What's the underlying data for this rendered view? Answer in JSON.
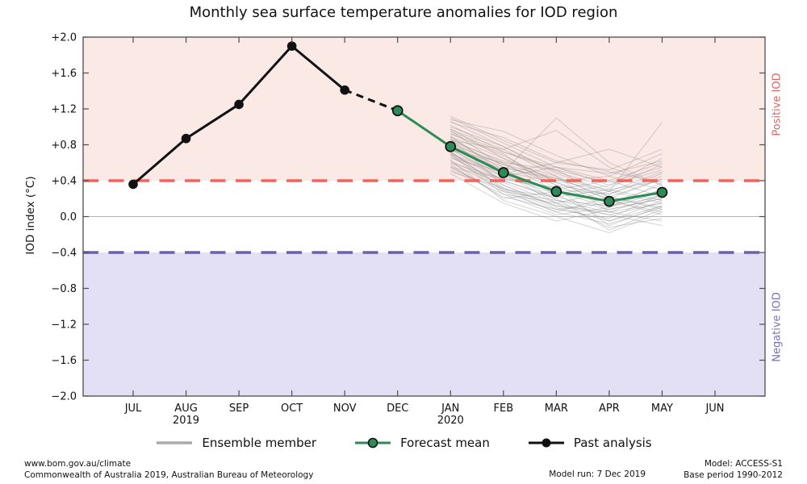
{
  "title": "Monthly sea surface temperature anomalies for IOD region",
  "ylabel": "IOD index (°C)",
  "region_labels": {
    "positive": "Positive IOD",
    "negative": "Negative IOD"
  },
  "legend": [
    {
      "key": "ensemble",
      "label": "Ensemble member"
    },
    {
      "key": "forecast",
      "label": "Forecast mean"
    },
    {
      "key": "past",
      "label": "Past analysis"
    }
  ],
  "footer": {
    "left_line1": "www.bom.gov.au/climate",
    "left_line2": "Commonwealth of Australia 2019, Australian Bureau of Meteorology",
    "model_run": "Model run: 7 Dec 2019",
    "model": "Model: ACCESS-S1",
    "base_period": "Base period 1990-2012"
  },
  "colors": {
    "positive_band": "#fbe9e6",
    "negative_band": "#e3e0f5",
    "positive_threshold": "#f4625c",
    "negative_threshold": "#6a61ad",
    "positive_label": "#e0625c",
    "negative_label": "#7a71b8",
    "forecast_green": "#2e8b57",
    "past_black": "#111111",
    "ensemble_gray": "#8c8c8c",
    "zero_line": "#b3b3b3",
    "frame": "#4d4d4d",
    "tick_text": "#111111"
  },
  "chart_data": {
    "type": "line",
    "title": "Monthly sea surface temperature anomalies for IOD region",
    "xlabel": "",
    "ylabel": "IOD index (°C)",
    "ylim": [
      -2.0,
      2.0
    ],
    "grid": "zero-line only",
    "legend_position": "bottom-center",
    "months": [
      "JUL",
      "AUG",
      "SEP",
      "OCT",
      "NOV",
      "DEC",
      "JAN",
      "FEB",
      "MAR",
      "APR",
      "MAY",
      "JUN"
    ],
    "year_labels": [
      {
        "text": "2019",
        "month": "AUG"
      },
      {
        "text": "2020",
        "month": "JAN"
      }
    ],
    "y_ticks": [
      {
        "label": "+2.0",
        "value": 2.0
      },
      {
        "label": "+1.6",
        "value": 1.6
      },
      {
        "label": "+1.2",
        "value": 1.2
      },
      {
        "label": "+0.8",
        "value": 0.8
      },
      {
        "label": "+0.4",
        "value": 0.4
      },
      {
        "label": "0.0",
        "value": 0.0
      },
      {
        "label": "−0.4",
        "value": -0.4
      },
      {
        "label": "−0.8",
        "value": -0.8
      },
      {
        "label": "−1.2",
        "value": -1.2
      },
      {
        "label": "−1.6",
        "value": -1.6
      },
      {
        "label": "−2.0",
        "value": -2.0
      }
    ],
    "thresholds": {
      "positive_iod": 0.4,
      "negative_iod": -0.4
    },
    "series": [
      {
        "name": "Past analysis",
        "style": "solid-black-markers",
        "x": [
          "JUL",
          "AUG",
          "SEP",
          "OCT",
          "NOV"
        ],
        "values": [
          0.36,
          0.87,
          1.25,
          1.9,
          1.41
        ]
      },
      {
        "name": "Past to forecast connector",
        "style": "dashed-black",
        "x": [
          "NOV",
          "DEC"
        ],
        "values": [
          1.41,
          1.18
        ]
      },
      {
        "name": "Forecast mean",
        "style": "solid-green-markers",
        "x": [
          "DEC",
          "JAN",
          "FEB",
          "MAR",
          "APR",
          "MAY"
        ],
        "values": [
          1.18,
          0.78,
          0.49,
          0.28,
          0.17,
          0.27
        ]
      }
    ],
    "ensemble": {
      "name": "Ensemble members",
      "x": [
        "JAN",
        "FEB",
        "MAR",
        "APR",
        "MAY"
      ],
      "members": [
        [
          0.95,
          0.72,
          0.55,
          0.48,
          0.62
        ],
        [
          0.62,
          0.35,
          0.12,
          0.02,
          0.15
        ],
        [
          0.81,
          0.58,
          0.43,
          0.22,
          0.08
        ],
        [
          0.7,
          0.28,
          0.05,
          -0.08,
          0.1
        ],
        [
          1.05,
          0.88,
          0.62,
          0.5,
          0.38
        ],
        [
          0.55,
          0.42,
          0.3,
          0.25,
          0.45
        ],
        [
          0.88,
          0.52,
          0.18,
          0.05,
          -0.05
        ],
        [
          0.74,
          0.6,
          0.52,
          0.38,
          0.55
        ],
        [
          0.98,
          0.65,
          0.35,
          0.12,
          0.22
        ],
        [
          0.6,
          0.3,
          0.22,
          0.3,
          0.18
        ],
        [
          0.85,
          0.75,
          0.96,
          0.55,
          0.35
        ],
        [
          0.68,
          0.45,
          0.25,
          -0.05,
          0.12
        ],
        [
          1.1,
          0.82,
          0.55,
          0.35,
          0.52
        ],
        [
          0.52,
          0.25,
          0.02,
          0.1,
          0.28
        ],
        [
          0.79,
          0.55,
          0.4,
          0.45,
          0.7
        ],
        [
          0.9,
          0.48,
          0.15,
          -0.12,
          -0.02
        ],
        [
          0.65,
          0.5,
          0.38,
          0.2,
          0.42
        ],
        [
          1.0,
          0.78,
          0.48,
          0.28,
          0.15
        ],
        [
          0.72,
          0.32,
          0.08,
          0.15,
          0.35
        ],
        [
          0.84,
          0.62,
          0.45,
          0.05,
          0.25
        ],
        [
          0.58,
          0.2,
          0.28,
          0.18,
          0.05
        ],
        [
          0.93,
          0.7,
          0.3,
          0.4,
          0.6
        ],
        [
          0.76,
          0.4,
          0.2,
          -0.15,
          0.08
        ],
        [
          1.08,
          0.95,
          0.68,
          0.45,
          0.3
        ],
        [
          0.48,
          0.15,
          -0.05,
          0.08,
          0.2
        ],
        [
          0.82,
          0.58,
          0.35,
          0.25,
          0.48
        ],
        [
          0.66,
          0.38,
          0.15,
          0.02,
          -0.1
        ],
        [
          0.96,
          0.55,
          0.42,
          0.3,
          0.4
        ],
        [
          0.7,
          0.48,
          0.6,
          0.75,
          0.55
        ],
        [
          0.87,
          0.35,
          0.1,
          -0.05,
          0.18
        ],
        [
          0.54,
          0.28,
          0.18,
          0.12,
          0.3
        ],
        [
          1.02,
          0.72,
          0.52,
          0.22,
          0.1
        ],
        [
          0.78,
          0.52,
          0.25,
          0.35,
          0.65
        ],
        [
          0.63,
          0.18,
          0.0,
          -0.18,
          0.05
        ],
        [
          0.92,
          0.68,
          0.38,
          0.15,
          0.28
        ],
        [
          0.75,
          0.45,
          0.55,
          0.4,
          0.22
        ],
        [
          1.12,
          0.85,
          0.6,
          0.52,
          0.75
        ],
        [
          0.5,
          0.32,
          0.12,
          0.05,
          0.15
        ],
        [
          0.86,
          0.6,
          0.28,
          0.1,
          0.38
        ],
        [
          0.69,
          0.25,
          0.15,
          0.28,
          0.5
        ],
        [
          0.97,
          0.75,
          0.45,
          0.18,
          0.02
        ],
        [
          0.6,
          0.42,
          0.32,
          -0.1,
          0.12
        ],
        [
          0.8,
          0.5,
          1.1,
          0.6,
          0.35
        ],
        [
          0.73,
          0.3,
          0.05,
          0.22,
          0.42
        ],
        [
          1.06,
          0.78,
          0.5,
          0.32,
          0.58
        ],
        [
          0.56,
          0.22,
          0.08,
          -0.02,
          0.25
        ],
        [
          0.89,
          0.65,
          0.4,
          0.28,
          1.05
        ],
        [
          0.71,
          0.4,
          0.22,
          0.08,
          0.2
        ]
      ]
    }
  }
}
